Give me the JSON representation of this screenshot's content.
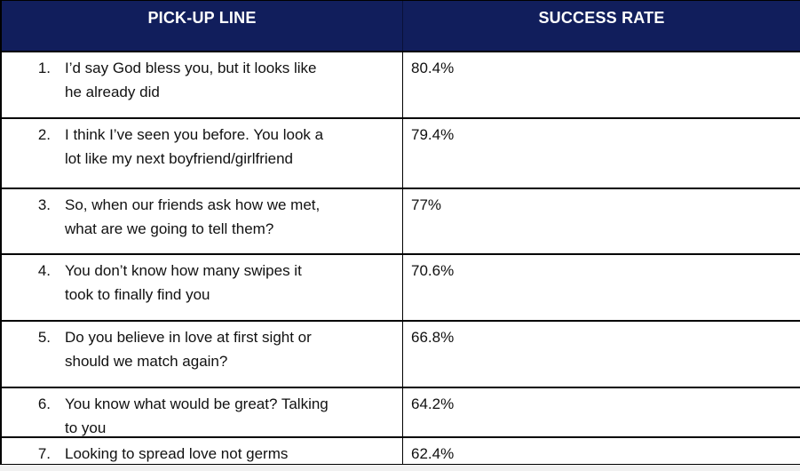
{
  "table": {
    "columns": {
      "pickup_line": "PICK-UP LINE",
      "success_rate": "SUCCESS RATE"
    },
    "rows": [
      {
        "rank": "1.",
        "line": "I’d say God bless you, but it looks like\nhe already did",
        "rate": "80.4%"
      },
      {
        "rank": "2.",
        "line": "I think I’ve seen you before. You look a\nlot like my next boyfriend/girlfriend",
        "rate": "79.4%"
      },
      {
        "rank": "3.",
        "line": "So, when our friends ask how we met,\nwhat are we going to tell them?",
        "rate": "77%"
      },
      {
        "rank": "4.",
        "line": "You don’t know how many swipes it\ntook to finally find you",
        "rate": "70.6%"
      },
      {
        "rank": "5.",
        "line": "Do you believe in love at first sight or\nshould we match again?",
        "rate": "66.8%"
      },
      {
        "rank": "6.",
        "line": "You know what would be great? Talking\nto you",
        "rate": "64.2%"
      },
      {
        "rank": "7.",
        "line": "Looking to spread love not germs",
        "rate": "62.4%"
      }
    ],
    "colors": {
      "header_background": "#111e5c",
      "header_text": "#ffffff",
      "border": "#000000",
      "row_background": "#ffffff",
      "page_background": "#f1f1f1"
    }
  }
}
